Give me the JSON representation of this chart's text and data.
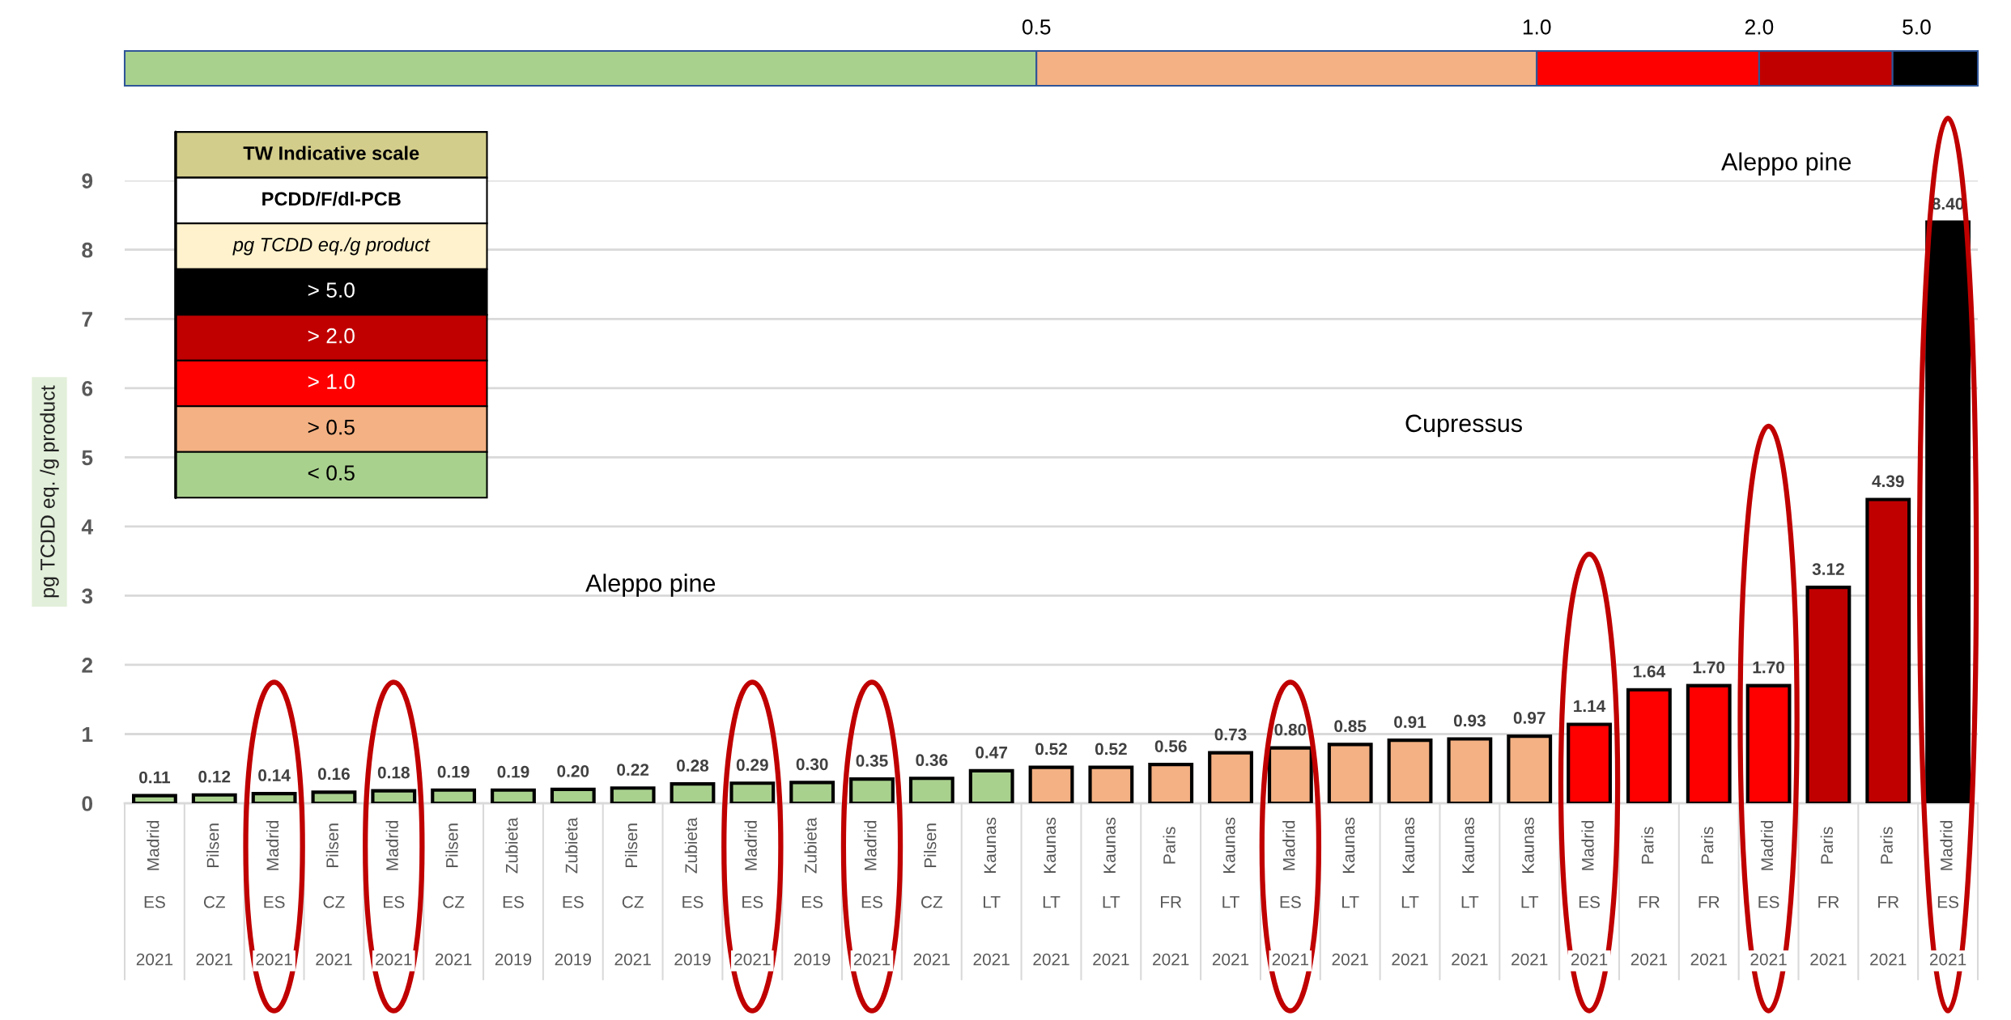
{
  "chart_data": {
    "type": "bar",
    "ylabel": "pg TCDD eq. /g product",
    "categories": [
      "Madrid\nES\n2021",
      "Pilsen\nCZ\n2021",
      "Madrid\nES\n2021",
      "Pilsen\nCZ\n2021",
      "Madrid\nES\n2021",
      "Pilsen\nCZ\n2021",
      "Zubieta\nES\n2019",
      "Zubieta\nES\n2019",
      "Pilsen\nCZ\n2021",
      "Zubieta\nES\n2019",
      "Madrid\nES\n2021",
      "Zubieta\nES\n2019",
      "Madrid\nES\n2021",
      "Pilsen\nCZ\n2021",
      "Kaunas\nLT\n2021",
      "Kaunas\nLT\n2021",
      "Kaunas\nLT\n2021",
      "Paris\nFR\n2021",
      "Kaunas\nLT\n2021",
      "Madrid\nES\n2021",
      "Kaunas\nLT\n2021",
      "Kaunas\nLT\n2021",
      "Kaunas\nLT\n2021",
      "Kaunas\nLT\n2021",
      "Madrid\nES\n2021",
      "Paris\nFR\n2021",
      "Paris\nFR\n2021",
      "Madrid\nES\n2021",
      "Paris\nFR\n2021",
      "Paris\nFR\n2021",
      "Madrid\nES\n2021"
    ],
    "series": [
      {
        "name": "> 5.0",
        "color": "#000000",
        "values": [
          null,
          null,
          null,
          null,
          null,
          null,
          null,
          null,
          null,
          null,
          null,
          null,
          null,
          null,
          null,
          null,
          null,
          null,
          null,
          null,
          null,
          null,
          null,
          null,
          null,
          null,
          null,
          null,
          null,
          null,
          8.4
        ],
        "value_labels": [
          null,
          null,
          null,
          null,
          null,
          null,
          null,
          null,
          null,
          null,
          null,
          null,
          null,
          null,
          null,
          null,
          null,
          null,
          null,
          null,
          null,
          null,
          null,
          null,
          null,
          null,
          null,
          null,
          null,
          null,
          "8.40"
        ]
      },
      {
        "name": "> 2.0",
        "color": "#c00000",
        "values": [
          null,
          null,
          null,
          null,
          null,
          null,
          null,
          null,
          null,
          null,
          null,
          null,
          null,
          null,
          null,
          null,
          null,
          null,
          null,
          null,
          null,
          null,
          null,
          null,
          null,
          null,
          null,
          null,
          3.12,
          4.39,
          null
        ],
        "value_labels": [
          null,
          null,
          null,
          null,
          null,
          null,
          null,
          null,
          null,
          null,
          null,
          null,
          null,
          null,
          null,
          null,
          null,
          null,
          null,
          null,
          null,
          null,
          null,
          null,
          null,
          null,
          null,
          null,
          "3.12",
          "4.39",
          null
        ]
      },
      {
        "name": "> 1.0",
        "color": "#ff0000",
        "values": [
          null,
          null,
          null,
          null,
          null,
          null,
          null,
          null,
          null,
          null,
          null,
          null,
          null,
          null,
          null,
          null,
          null,
          null,
          null,
          null,
          null,
          null,
          null,
          null,
          1.14,
          1.64,
          1.7,
          1.7,
          null,
          null,
          null
        ],
        "value_labels": [
          null,
          null,
          null,
          null,
          null,
          null,
          null,
          null,
          null,
          null,
          null,
          null,
          null,
          null,
          null,
          null,
          null,
          null,
          null,
          null,
          null,
          null,
          null,
          null,
          "1.14",
          "1.64",
          "1.70",
          "1.70",
          null,
          null,
          null
        ]
      },
      {
        "name": "> 0.5",
        "color": "#f4b183",
        "values": [
          null,
          null,
          null,
          null,
          null,
          null,
          null,
          null,
          null,
          null,
          null,
          null,
          null,
          null,
          null,
          0.52,
          0.52,
          0.56,
          0.73,
          0.8,
          0.85,
          0.91,
          0.93,
          0.97,
          null,
          null,
          null,
          null,
          null,
          null,
          null
        ],
        "value_labels": [
          null,
          null,
          null,
          null,
          null,
          null,
          null,
          null,
          null,
          null,
          null,
          null,
          null,
          null,
          null,
          "0.52",
          "0.52",
          "0.56",
          "0.73",
          "0.80",
          "0.85",
          "0.91",
          "0.93",
          "0.97",
          null,
          null,
          null,
          null,
          null,
          null,
          null
        ]
      },
      {
        "name": "< 0.5",
        "color": "#a9d18e",
        "values": [
          0.11,
          0.12,
          0.14,
          0.16,
          0.18,
          0.19,
          0.19,
          0.2,
          0.22,
          0.28,
          0.29,
          0.3,
          0.35,
          0.36,
          0.47,
          null,
          null,
          null,
          null,
          null,
          null,
          null,
          null,
          null,
          null,
          null,
          null,
          null,
          null,
          null,
          null
        ],
        "value_labels": [
          "0.11",
          "0.12",
          "0.14",
          "0.16",
          "0.18",
          "0.19",
          "0.19",
          "0.20",
          "0.22",
          "0.28",
          "0.29",
          "0.30",
          "0.35",
          "0.36",
          "0.47",
          null,
          null,
          null,
          null,
          null,
          null,
          null,
          null,
          null,
          null,
          null,
          null,
          null,
          null,
          null,
          null
        ]
      }
    ],
    "legend_title": "TW Indicative scale\nPCDD/F/dl-PCB\npg TCDD eq./g product",
    "legend": "top left",
    "ylim": [
      0,
      9
    ],
    "yticks": [
      0,
      1,
      2,
      3,
      4,
      5,
      6,
      7,
      8,
      9
    ],
    "grid": "y",
    "annotations": [
      "0.5",
      "1.0",
      "2.0",
      "5.0",
      "Aleppo pine",
      "Cupressus",
      "Aleppo pine"
    ]
  }
}
